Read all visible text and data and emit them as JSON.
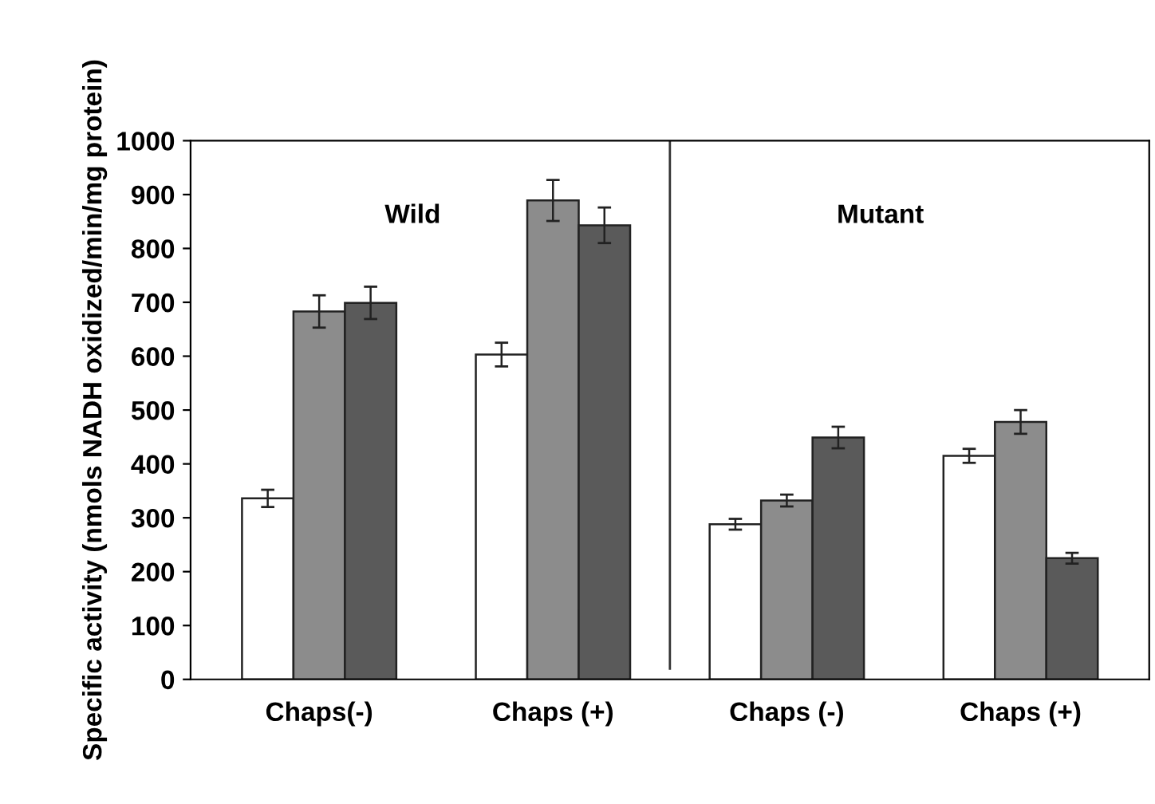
{
  "chart_data": {
    "type": "bar",
    "ylabel": "Specific activity (nmols NADH oxidized/min/mg protein)",
    "categories": [
      "Chaps(-)",
      "Chaps (+)",
      "Chaps (-)",
      "Chaps (+)"
    ],
    "series": [
      {
        "color": "#ffffff",
        "values": [
          336,
          603,
          288,
          415
        ],
        "errors": [
          16,
          22,
          10,
          13
        ]
      },
      {
        "color": "#8c8c8c",
        "values": [
          683,
          889,
          332,
          478
        ],
        "errors": [
          30,
          38,
          11,
          22
        ]
      },
      {
        "color": "#5a5a5a",
        "values": [
          699,
          843,
          449,
          225
        ],
        "errors": [
          30,
          33,
          20,
          10
        ]
      }
    ],
    "ylim": [
      0,
      1000
    ],
    "yticks": [
      0,
      100,
      200,
      300,
      400,
      500,
      600,
      700,
      800,
      900,
      1000
    ],
    "annotations": [
      "Wild",
      "Mutant"
    ],
    "grid": false,
    "legend": false
  }
}
